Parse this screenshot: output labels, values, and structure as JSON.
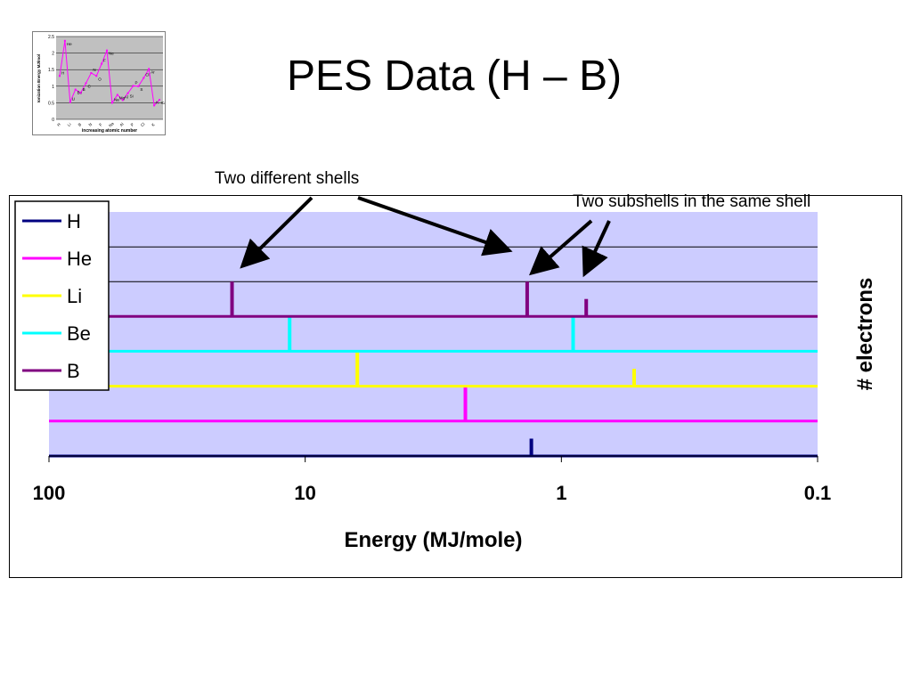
{
  "slide": {
    "title": "PES Data (H – B)",
    "annotations": [
      "Two different shells",
      "Two subshells in the same shell"
    ]
  },
  "thumbnail_chart": {
    "type": "line",
    "ylabel": "Ionization Energy MJ/mol",
    "xlabel": "increasing atomic number",
    "ylim": [
      0,
      2.5
    ],
    "yticks": [
      "0",
      "0.5",
      "1",
      "1.5",
      "2",
      "2.5"
    ],
    "elements": [
      "H",
      "He",
      "Li",
      "Be",
      "B",
      "C",
      "N",
      "O",
      "F",
      "Ne",
      "Na",
      "Mg",
      "Al",
      "Si",
      "P",
      "S",
      "Cl",
      "Ar",
      "K",
      "Ca"
    ],
    "values": [
      1.31,
      2.37,
      0.52,
      0.9,
      0.8,
      1.09,
      1.4,
      1.31,
      1.68,
      2.08,
      0.5,
      0.74,
      0.58,
      0.79,
      1.01,
      1.0,
      1.25,
      1.52,
      0.42,
      0.59
    ],
    "xtick_labels": [
      "H",
      "Li",
      "B",
      "N",
      "F",
      "Na",
      "Al",
      "P",
      "Cl",
      "K"
    ],
    "color": "#ff00ff"
  },
  "chart_data": {
    "type": "line",
    "xlabel": "Energy (MJ/mole)",
    "ylabel": "# electrons",
    "x_scale": "log",
    "x_reversed": true,
    "xlim": [
      100,
      0.1
    ],
    "x_tick_labels": [
      "100",
      "10",
      "1",
      "0.1"
    ],
    "x_tick_values": [
      100,
      10,
      1,
      0.1
    ],
    "background_color": "#ccccff",
    "legend_position": "left",
    "series": [
      {
        "name": "H",
        "color": "#000080",
        "peaks": [
          {
            "x": 1.31,
            "height": 1
          }
        ]
      },
      {
        "name": "He",
        "color": "#ff00ff",
        "peaks": [
          {
            "x": 2.37,
            "height": 2
          }
        ]
      },
      {
        "name": "Li",
        "color": "#ffff00",
        "peaks": [
          {
            "x": 6.26,
            "height": 2
          },
          {
            "x": 0.52,
            "height": 1
          }
        ]
      },
      {
        "name": "Be",
        "color": "#00ffff",
        "peaks": [
          {
            "x": 11.5,
            "height": 2
          },
          {
            "x": 0.9,
            "height": 2
          }
        ]
      },
      {
        "name": "B",
        "color": "#800080",
        "peaks": [
          {
            "x": 19.3,
            "height": 2
          },
          {
            "x": 1.36,
            "height": 2
          },
          {
            "x": 0.8,
            "height": 1
          }
        ]
      }
    ]
  }
}
